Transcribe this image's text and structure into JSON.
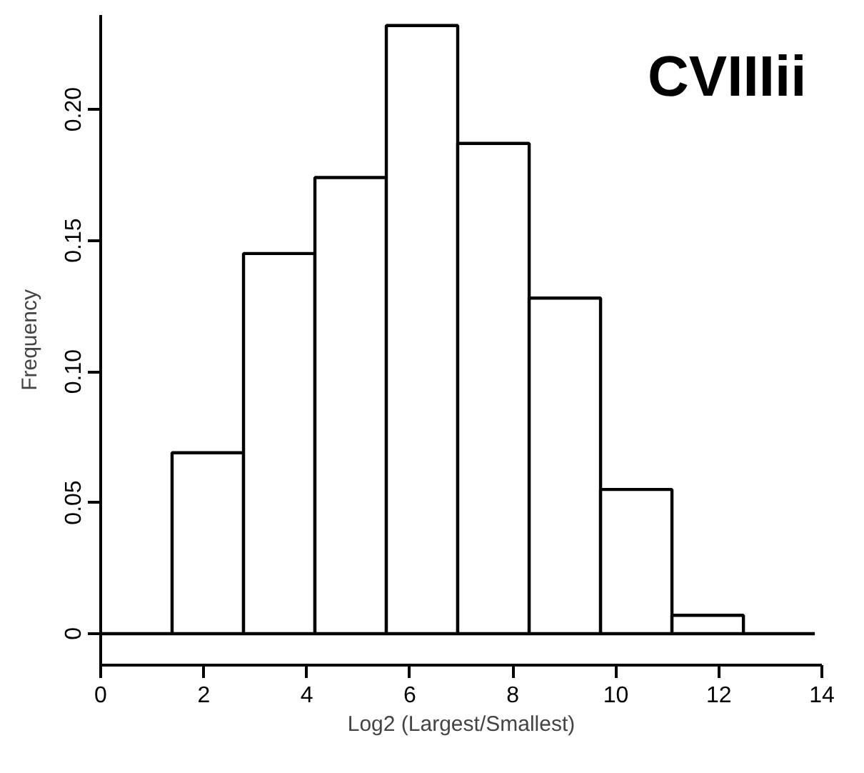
{
  "chart_data": {
    "type": "histogram",
    "title": "CVIIIii",
    "xlabel": "Log2 (Largest/Smallest)",
    "ylabel": "Frequency",
    "bins": [
      0,
      1.386,
      2.773,
      4.159,
      5.545,
      6.931,
      8.318,
      9.704,
      11.09,
      12.477,
      13.863
    ],
    "values": [
      0,
      0.069,
      0.145,
      0.174,
      0.232,
      0.187,
      0.128,
      0.055,
      0.007,
      0
    ],
    "xlim": [
      0,
      14
    ],
    "ylim": [
      -0.012,
      0.236
    ],
    "xticks": [
      0,
      2,
      4,
      6,
      8,
      10,
      12,
      14
    ],
    "yticks": [
      0,
      0.05,
      {
        "value": 0.1,
        "label": "0.10"
      },
      0.15,
      {
        "value": 0.2,
        "label": "0.20"
      }
    ],
    "grid": false
  }
}
